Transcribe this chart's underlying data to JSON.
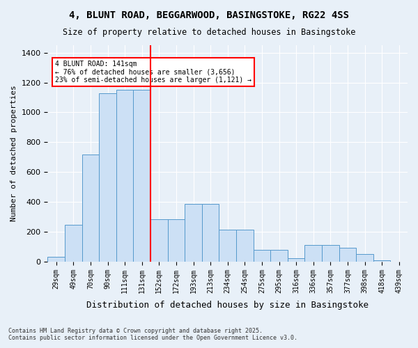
{
  "title1": "4, BLUNT ROAD, BEGGARWOOD, BASINGSTOKE, RG22 4SS",
  "title2": "Size of property relative to detached houses in Basingstoke",
  "xlabel": "Distribution of detached houses by size in Basingstoke",
  "ylabel": "Number of detached properties",
  "bar_labels": [
    "29sqm",
    "49sqm",
    "70sqm",
    "90sqm",
    "111sqm",
    "131sqm",
    "152sqm",
    "172sqm",
    "193sqm",
    "213sqm",
    "234sqm",
    "254sqm",
    "275sqm",
    "295sqm",
    "316sqm",
    "336sqm",
    "357sqm",
    "377sqm",
    "398sqm",
    "418sqm",
    "439sqm"
  ],
  "bar_values": [
    30,
    245,
    720,
    1130,
    1150,
    1150,
    285,
    285,
    385,
    385,
    215,
    215,
    80,
    80,
    25,
    110,
    110,
    95,
    50,
    8,
    0
  ],
  "bar_color": "#cce0f5",
  "bar_edge_color": "#5599cc",
  "vline_x": 5.5,
  "vline_color": "red",
  "annotation_text": "4 BLUNT ROAD: 141sqm\n← 76% of detached houses are smaller (3,656)\n23% of semi-detached houses are larger (1,121) →",
  "annotation_box_color": "white",
  "annotation_box_edge": "red",
  "ylim": [
    0,
    1450
  ],
  "yticks": [
    0,
    200,
    400,
    600,
    800,
    1000,
    1200,
    1400
  ],
  "footnote": "Contains HM Land Registry data © Crown copyright and database right 2025.\nContains public sector information licensed under the Open Government Licence v3.0.",
  "bg_color": "#e8f0f8",
  "plot_bg": "#e8f0f8"
}
